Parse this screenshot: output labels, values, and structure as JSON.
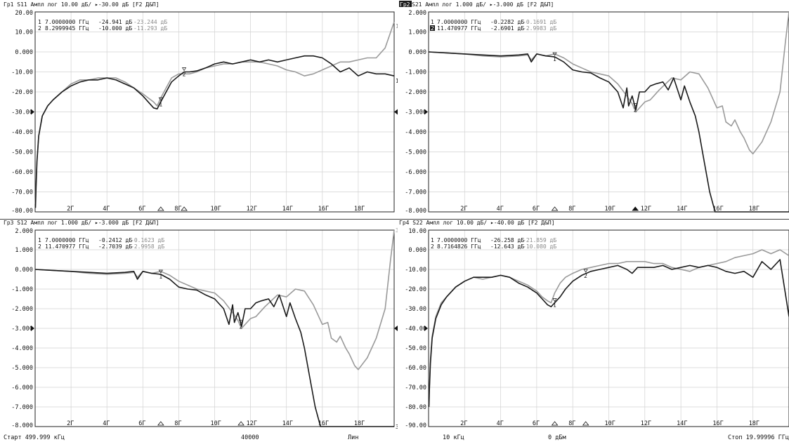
{
  "chart_data": [
    {
      "type": "line",
      "header": "Гр1 S11 Ампл лог 10.00 дБ/ ▸-30.00 дБ [F2 Д&П]",
      "ylim": [
        -80,
        20
      ],
      "y_ticks": [
        "20.00",
        "10.00",
        "0.000",
        "-10.00",
        "-20.00",
        "-30.00",
        "-40.00",
        "-50.00",
        "-60.00",
        "-70.00",
        "-80.00"
      ],
      "ref_level": -30,
      "x_ticks": [
        "2Г",
        "4Г",
        "6Г",
        "8Г",
        "10Г",
        "12Г",
        "14Г",
        "16Г",
        "18Г"
      ],
      "xlim": [
        0,
        20
      ],
      "markers_readout": [
        {
          "num": "1",
          "freq": "7.0000000 ГГц",
          "val_dark": "-24.941 дБ",
          "val_gray": "-23.244 дБ"
        },
        {
          "num": "2",
          "freq": "8.2999945 ГГц",
          "val_dark": "-10.000 дБ",
          "val_gray": "-11.293 дБ"
        }
      ],
      "series": [
        {
          "color": "#1a1a1a",
          "x": [
            0.02,
            0.05,
            0.1,
            0.2,
            0.4,
            0.7,
            1.0,
            1.5,
            2.0,
            2.5,
            3.0,
            3.5,
            4.0,
            4.5,
            5.0,
            5.5,
            6.0,
            6.3,
            6.6,
            6.8,
            7.0,
            7.3,
            7.6,
            8.0,
            8.3,
            8.6,
            9.0,
            9.5,
            10.0,
            10.5,
            11.0,
            11.5,
            12.0,
            12.5,
            13.0,
            13.5,
            14.0,
            14.5,
            15.0,
            15.5,
            16.0,
            16.5,
            17.0,
            17.5,
            18.0,
            18.5,
            19.0,
            19.5,
            20.0
          ],
          "y": [
            -78,
            -68,
            -55,
            -42,
            -32,
            -27,
            -24,
            -20,
            -17,
            -15,
            -14,
            -14,
            -13,
            -14,
            -16,
            -18,
            -22,
            -25,
            -28,
            -28.5,
            -25,
            -20,
            -15,
            -12,
            -10,
            -10,
            -9.5,
            -8,
            -6,
            -5,
            -6,
            -5,
            -4,
            -5,
            -4,
            -5,
            -4,
            -3,
            -2,
            -2,
            -3,
            -6,
            -10,
            -8,
            -12,
            -10,
            -11,
            -11,
            -12
          ]
        },
        {
          "color": "#9a9a9a",
          "x": [
            0.02,
            0.05,
            0.1,
            0.2,
            0.4,
            0.7,
            1.0,
            1.5,
            2.0,
            2.5,
            3.0,
            3.5,
            4.0,
            4.5,
            5.0,
            5.5,
            6.0,
            6.3,
            6.6,
            6.8,
            7.0,
            7.3,
            7.6,
            8.0,
            8.3,
            8.6,
            9.0,
            9.5,
            10.0,
            10.5,
            11.0,
            11.5,
            12.0,
            12.5,
            13.0,
            13.5,
            14.0,
            14.5,
            15.0,
            15.5,
            16.0,
            16.5,
            17.0,
            17.5,
            18.0,
            18.5,
            19.0,
            19.5,
            20.0
          ],
          "y": [
            -76,
            -66,
            -54,
            -42,
            -32,
            -27,
            -24,
            -20,
            -16,
            -14,
            -14,
            -13,
            -13,
            -13,
            -15,
            -18,
            -21,
            -23,
            -25,
            -27,
            -23,
            -18,
            -13,
            -11,
            -11,
            -11,
            -10,
            -8,
            -7,
            -6,
            -6,
            -5,
            -5,
            -5,
            -6,
            -7,
            -9,
            -10,
            -12,
            -11,
            -9,
            -7,
            -5,
            -5,
            -4,
            -3,
            -3,
            2,
            15
          ]
        }
      ],
      "triangles": [
        {
          "x": 7.0
        },
        {
          "x": 8.3
        }
      ],
      "right_label": "1",
      "top_right_label": "1"
    },
    {
      "type": "line",
      "header_badge": "Гр2",
      "header": " S21 Ампл лог 1.000 дБ/ ▸-3.000 дБ [F2 Д&П]",
      "ylim": [
        -8,
        2
      ],
      "y_ticks": [
        "2.000",
        "1.000",
        "0.000",
        "-1.000",
        "-2.000",
        "-3.000",
        "-4.000",
        "-5.000",
        "-6.000",
        "-7.000",
        "-8.000"
      ],
      "ref_level": -3,
      "x_ticks": [
        "2Г",
        "4Г",
        "6Г",
        "8Г",
        "10Г",
        "12Г",
        "14Г",
        "16Г",
        "18Г"
      ],
      "xlim": [
        0,
        20
      ],
      "markers_readout": [
        {
          "num": "1",
          "freq": "7.0000000 ГГц",
          "val_dark": "-0.2282 дБ",
          "val_gray": "-0.1691 дБ"
        },
        {
          "num": "2",
          "freq": "11.470977 ГГц",
          "val_dark": "-2.6901 дБ",
          "val_gray": "-2.9983 дБ"
        }
      ],
      "series": [
        {
          "color": "#1a1a1a",
          "x": [
            0.0,
            1.0,
            2.0,
            3.0,
            4.0,
            5.0,
            5.5,
            5.7,
            6.0,
            6.5,
            7.0,
            7.5,
            8.0,
            8.5,
            9.0,
            9.5,
            10.0,
            10.5,
            10.8,
            11.0,
            11.1,
            11.3,
            11.5,
            11.7,
            12.0,
            12.3,
            12.6,
            13.0,
            13.3,
            13.6,
            14.0,
            14.2,
            14.5,
            14.8,
            15.0,
            15.3,
            15.6,
            15.9,
            16.0,
            16.2,
            16.5,
            17.0,
            18.0,
            19.0,
            20.0
          ],
          "y": [
            0,
            -0.05,
            -0.1,
            -0.15,
            -0.2,
            -0.15,
            -0.1,
            -0.5,
            -0.1,
            -0.2,
            -0.25,
            -0.5,
            -0.9,
            -1.0,
            -1.05,
            -1.3,
            -1.5,
            -2.0,
            -2.8,
            -1.8,
            -2.7,
            -2.2,
            -2.9,
            -2.0,
            -2.0,
            -1.7,
            -1.6,
            -1.5,
            -1.9,
            -1.3,
            -2.4,
            -1.7,
            -2.5,
            -3.2,
            -4.0,
            -5.5,
            -7.0,
            -8.0,
            -8.0,
            -8.0,
            -8.0,
            -8.0,
            -8.0,
            -8.0,
            -8.0
          ]
        },
        {
          "color": "#9a9a9a",
          "x": [
            0.0,
            1.0,
            2.0,
            3.0,
            4.0,
            5.0,
            5.5,
            5.7,
            6.0,
            6.5,
            7.0,
            7.5,
            8.0,
            8.5,
            9.0,
            9.5,
            10.0,
            10.5,
            11.0,
            11.3,
            11.5,
            11.8,
            12.0,
            12.3,
            12.8,
            13.5,
            14.0,
            14.5,
            15.0,
            15.5,
            16.0,
            16.3,
            16.5,
            16.8,
            17.0,
            17.3,
            17.5,
            17.8,
            18.0,
            18.5,
            19.0,
            19.5,
            19.8,
            20.0
          ],
          "y": [
            0,
            -0.05,
            -0.1,
            -0.2,
            -0.25,
            -0.2,
            -0.15,
            -0.4,
            -0.1,
            -0.2,
            -0.1,
            -0.3,
            -0.6,
            -0.8,
            -1.0,
            -1.1,
            -1.2,
            -1.6,
            -2.2,
            -2.6,
            -3.0,
            -2.7,
            -2.5,
            -2.4,
            -1.9,
            -1.3,
            -1.4,
            -1.0,
            -1.1,
            -1.8,
            -2.8,
            -2.7,
            -3.5,
            -3.7,
            -3.4,
            -4.0,
            -4.3,
            -4.9,
            -5.1,
            -4.5,
            -3.5,
            -2.0,
            0.5,
            2.0
          ]
        }
      ],
      "triangles": [
        {
          "x": 7.0
        },
        {
          "x": 11.47,
          "filled": true
        }
      ]
    },
    {
      "type": "line",
      "header": "Гр3 S12 Ампл лог 1.000 дБ/ ▸-3.000 дБ [F2 Д&П]",
      "ylim": [
        -8,
        2
      ],
      "y_ticks": [
        "2.000",
        "1.000",
        "0.000",
        "-1.000",
        "-2.000",
        "-3.000",
        "-4.000",
        "-5.000",
        "-6.000",
        "-7.000",
        "-8.000"
      ],
      "ref_level": -3,
      "x_ticks": [
        "2Г",
        "4Г",
        "6Г",
        "8Г",
        "10Г",
        "12Г",
        "14Г",
        "16Г",
        "18Г"
      ],
      "xlim": [
        0,
        20
      ],
      "markers_readout": [
        {
          "num": "1",
          "freq": "7.0000000 ГГц",
          "val_dark": "-0.2412 дБ",
          "val_gray": "-0.1623 дБ"
        },
        {
          "num": "2",
          "freq": "11.470977 ГГц",
          "val_dark": "-2.7039 дБ",
          "val_gray": "-2.9958 дБ"
        }
      ],
      "series": [
        {
          "color": "#1a1a1a",
          "x": [
            0.0,
            1.0,
            2.0,
            3.0,
            4.0,
            5.0,
            5.5,
            5.7,
            6.0,
            6.5,
            7.0,
            7.5,
            8.0,
            8.5,
            9.0,
            9.5,
            10.0,
            10.5,
            10.8,
            11.0,
            11.1,
            11.3,
            11.5,
            11.7,
            12.0,
            12.3,
            12.6,
            13.0,
            13.3,
            13.6,
            14.0,
            14.2,
            14.5,
            14.8,
            15.0,
            15.3,
            15.6,
            15.9,
            16.0,
            16.2,
            16.5,
            17.0,
            18.0,
            19.0,
            20.0
          ],
          "y": [
            0,
            -0.05,
            -0.1,
            -0.15,
            -0.2,
            -0.15,
            -0.1,
            -0.5,
            -0.1,
            -0.2,
            -0.25,
            -0.5,
            -0.9,
            -1.0,
            -1.05,
            -1.3,
            -1.5,
            -2.0,
            -2.8,
            -1.8,
            -2.7,
            -2.2,
            -2.9,
            -2.0,
            -2.0,
            -1.7,
            -1.6,
            -1.5,
            -1.9,
            -1.3,
            -2.4,
            -1.7,
            -2.5,
            -3.2,
            -4.0,
            -5.5,
            -7.0,
            -8.0,
            -8.0,
            -8.0,
            -8.0,
            -8.0,
            -8.0,
            -8.0,
            -8.0
          ]
        },
        {
          "color": "#9a9a9a",
          "x": [
            0.0,
            1.0,
            2.0,
            3.0,
            4.0,
            5.0,
            5.5,
            5.7,
            6.0,
            6.5,
            7.0,
            7.5,
            8.0,
            8.5,
            9.0,
            9.5,
            10.0,
            10.5,
            11.0,
            11.3,
            11.5,
            11.8,
            12.0,
            12.3,
            12.8,
            13.5,
            14.0,
            14.5,
            15.0,
            15.5,
            16.0,
            16.3,
            16.5,
            16.8,
            17.0,
            17.3,
            17.5,
            17.8,
            18.0,
            18.5,
            19.0,
            19.5,
            19.8,
            20.0
          ],
          "y": [
            0,
            -0.05,
            -0.1,
            -0.2,
            -0.25,
            -0.2,
            -0.15,
            -0.4,
            -0.1,
            -0.2,
            -0.1,
            -0.3,
            -0.6,
            -0.8,
            -1.0,
            -1.1,
            -1.2,
            -1.6,
            -2.2,
            -2.6,
            -3.0,
            -2.7,
            -2.5,
            -2.4,
            -1.9,
            -1.3,
            -1.4,
            -1.0,
            -1.1,
            -1.8,
            -2.8,
            -2.7,
            -3.5,
            -3.7,
            -3.4,
            -4.0,
            -4.3,
            -4.9,
            -5.1,
            -4.5,
            -3.5,
            -2.0,
            0.5,
            2.0
          ]
        }
      ],
      "triangles": [
        {
          "x": 7.0
        },
        {
          "x": 11.47
        }
      ],
      "right_label": "3",
      "top_right_label": "3"
    },
    {
      "type": "line",
      "header": "Гр4 S22 Ампл лог 10.00 дБ/ ▸-40.00 дБ [F2 Д&П]",
      "ylim": [
        -90,
        10
      ],
      "y_ticks": [
        "10.00",
        "0.000",
        "-10.00",
        "-20.00",
        "-30.00",
        "-40.00",
        "-50.00",
        "-60.00",
        "-70.00",
        "-80.00",
        "-90.00"
      ],
      "ref_level": -40,
      "x_ticks": [
        "2Г",
        "4Г",
        "6Г",
        "8Г",
        "10Г",
        "12Г",
        "14Г",
        "16Г",
        "18Г"
      ],
      "xlim": [
        0,
        20
      ],
      "markers_readout": [
        {
          "num": "1",
          "freq": "7.0000000 ГГц",
          "val_dark": "-26.258 дБ",
          "val_gray": "-21.859 дБ"
        },
        {
          "num": "2",
          "freq": "8.7164826 ГГц",
          "val_dark": "-12.643 дБ",
          "val_gray": "-10.080 дБ"
        }
      ],
      "series": [
        {
          "color": "#1a1a1a",
          "x": [
            0.02,
            0.05,
            0.1,
            0.2,
            0.4,
            0.7,
            1.0,
            1.5,
            2.0,
            2.5,
            3.0,
            3.5,
            4.0,
            4.5,
            5.0,
            5.5,
            6.0,
            6.3,
            6.6,
            6.8,
            7.0,
            7.3,
            7.6,
            8.0,
            8.5,
            9.0,
            9.5,
            10.0,
            10.5,
            11.0,
            11.3,
            11.6,
            12.0,
            12.5,
            13.0,
            13.5,
            14.0,
            14.5,
            15.0,
            15.5,
            16.0,
            16.5,
            17.0,
            17.5,
            18.0,
            18.5,
            19.0,
            19.5,
            20.0
          ],
          "y": [
            -80,
            -70,
            -58,
            -45,
            -35,
            -28,
            -24,
            -19,
            -16,
            -14,
            -14,
            -14,
            -13,
            -14,
            -17,
            -19,
            -22,
            -25,
            -28,
            -29,
            -27,
            -24,
            -20,
            -16,
            -13,
            -11,
            -10,
            -9,
            -8,
            -10,
            -12,
            -9,
            -9,
            -9,
            -8,
            -10,
            -9,
            -8,
            -9,
            -8,
            -9,
            -11,
            -12,
            -11,
            -14,
            -6,
            -10,
            -5,
            -34
          ]
        },
        {
          "color": "#9a9a9a",
          "x": [
            0.02,
            0.05,
            0.1,
            0.2,
            0.4,
            0.7,
            1.0,
            1.5,
            2.0,
            2.5,
            3.0,
            3.5,
            4.0,
            4.5,
            5.0,
            5.5,
            6.0,
            6.3,
            6.6,
            6.8,
            7.0,
            7.3,
            7.6,
            8.0,
            8.5,
            9.0,
            9.5,
            10.0,
            10.5,
            11.0,
            11.5,
            12.0,
            12.5,
            13.0,
            13.5,
            14.0,
            14.5,
            15.0,
            15.5,
            16.0,
            16.5,
            17.0,
            17.5,
            18.0,
            18.5,
            19.0,
            19.5,
            20.0
          ],
          "y": [
            -79,
            -69,
            -56,
            -44,
            -34,
            -27,
            -24,
            -19,
            -16,
            -14,
            -15,
            -14,
            -13,
            -14,
            -16,
            -18,
            -21,
            -24,
            -26,
            -27,
            -22,
            -17,
            -14,
            -12,
            -10,
            -9,
            -8,
            -7,
            -7,
            -6,
            -6,
            -6,
            -7,
            -7,
            -9,
            -10,
            -11,
            -9,
            -8,
            -7,
            -6,
            -4,
            -3,
            -2,
            0,
            -2,
            0,
            -3
          ]
        }
      ],
      "triangles": [
        {
          "x": 7.0
        },
        {
          "x": 8.72
        }
      ]
    }
  ],
  "footer": {
    "start": "Старт 499.999 кГц",
    "points": "40000",
    "sweep_type": "Лин",
    "ifbw": "10 кГц",
    "power": "0 дБм",
    "stop": "Стоп 19.99996 ГГц"
  },
  "colors": {
    "trace_dark": "#1a1a1a",
    "trace_gray": "#9a9a9a",
    "grid": "#d2d2d2",
    "badge_bg": "#1a1a1a",
    "badge_fg": "#ffffff"
  }
}
